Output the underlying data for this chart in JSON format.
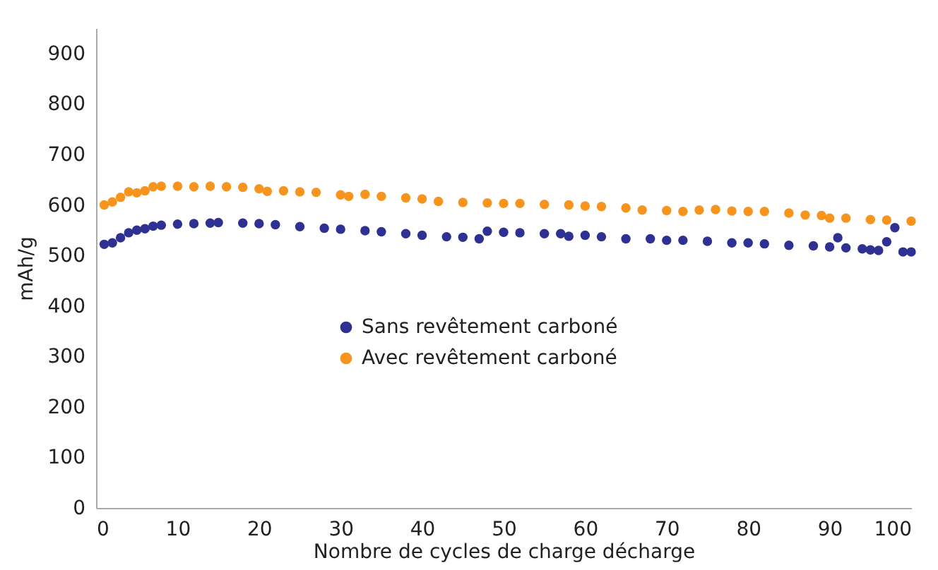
{
  "chart_data": {
    "type": "scatter",
    "xlabel": "Nombre de cycles de charge décharge",
    "ylabel": "mAh/g",
    "xlim": [
      0,
      100
    ],
    "xticks": [
      0,
      10,
      20,
      30,
      40,
      50,
      60,
      70,
      80,
      90,
      100
    ],
    "ylim": [
      0,
      950
    ],
    "yticks": [
      0,
      100,
      200,
      300,
      400,
      500,
      600,
      700,
      800,
      900
    ],
    "grid": false,
    "legend": "center",
    "marker": "circle",
    "series": [
      {
        "name": "Sans revêtement carboné",
        "color": "#2e3192",
        "x": [
          1,
          2,
          3,
          4,
          5,
          6,
          7,
          8,
          10,
          12,
          14,
          15,
          18,
          20,
          22,
          25,
          28,
          30,
          33,
          35,
          38,
          40,
          43,
          45,
          47,
          48,
          50,
          52,
          55,
          57,
          58,
          60,
          62,
          65,
          68,
          70,
          72,
          75,
          78,
          80,
          82,
          85,
          88,
          90,
          91,
          92,
          94,
          95,
          96,
          97,
          98,
          99,
          100
        ],
        "values": [
          522,
          525,
          535,
          545,
          550,
          553,
          558,
          560,
          562,
          563,
          564,
          565,
          564,
          563,
          561,
          557,
          554,
          552,
          549,
          547,
          543,
          540,
          537,
          536,
          533,
          548,
          546,
          545,
          543,
          543,
          538,
          540,
          537,
          533,
          533,
          530,
          530,
          528,
          525,
          525,
          523,
          520,
          519,
          517,
          535,
          515,
          513,
          511,
          510,
          527,
          555,
          507,
          507
        ]
      },
      {
        "name": "Avec revêtement carboné",
        "color": "#f7941d",
        "x": [
          1,
          2,
          3,
          4,
          5,
          6,
          7,
          8,
          10,
          12,
          14,
          16,
          18,
          20,
          21,
          23,
          25,
          27,
          30,
          31,
          33,
          35,
          38,
          40,
          42,
          45,
          48,
          50,
          52,
          55,
          58,
          60,
          62,
          65,
          67,
          70,
          72,
          74,
          76,
          78,
          80,
          82,
          85,
          87,
          89,
          90,
          92,
          95,
          97,
          100
        ],
        "values": [
          600,
          606,
          615,
          626,
          624,
          628,
          636,
          637,
          637,
          636,
          637,
          636,
          635,
          632,
          627,
          628,
          626,
          625,
          620,
          617,
          621,
          617,
          614,
          612,
          607,
          605,
          604,
          603,
          603,
          601,
          600,
          598,
          597,
          594,
          590,
          589,
          587,
          590,
          591,
          588,
          587,
          587,
          584,
          580,
          579,
          574,
          574,
          571,
          570,
          568
        ]
      }
    ]
  }
}
